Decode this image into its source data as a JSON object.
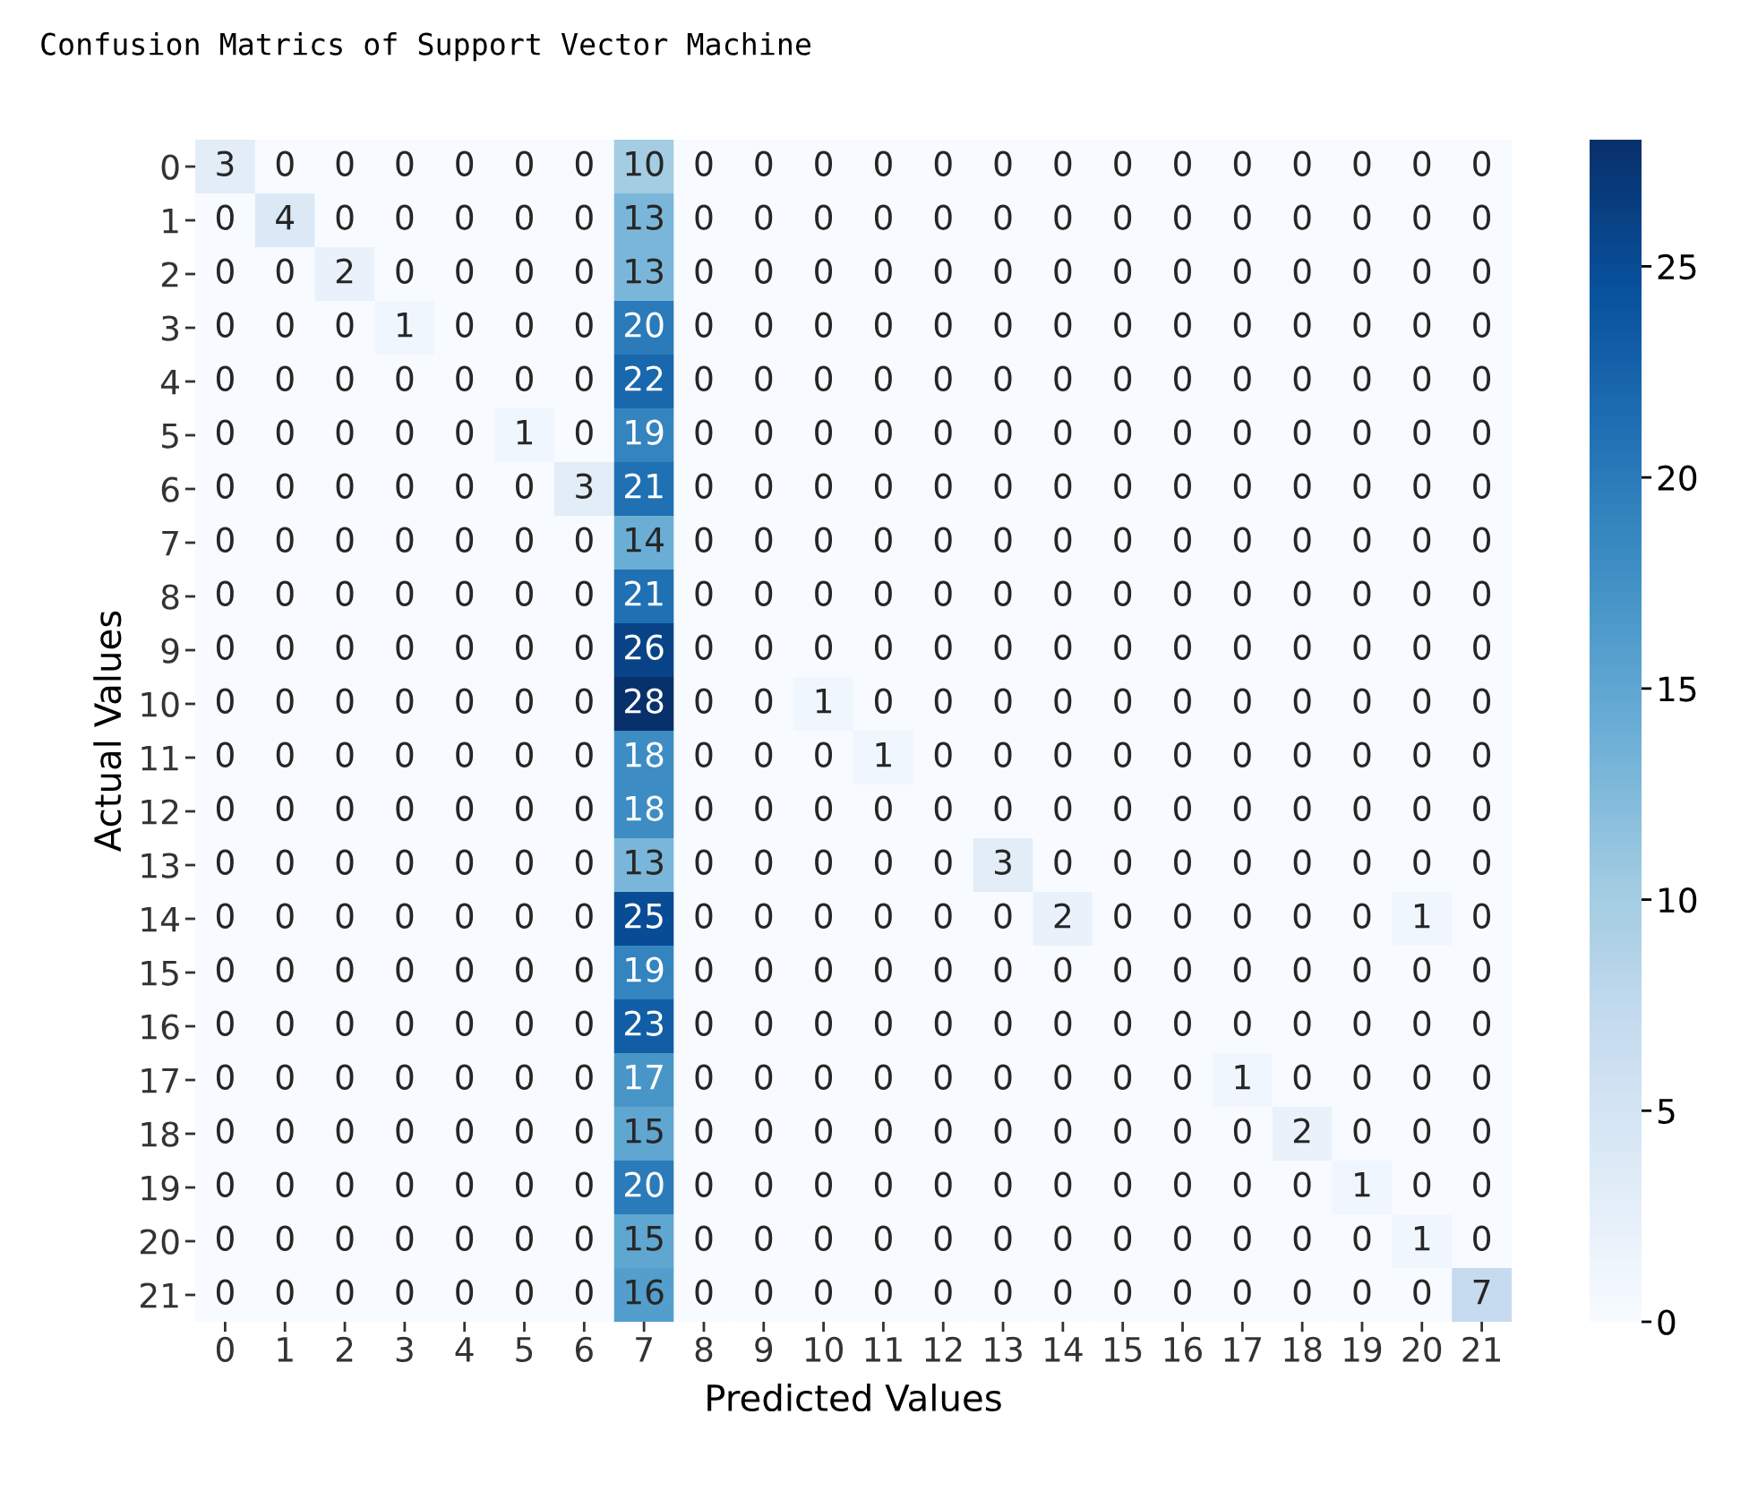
{
  "chart_data": {
    "type": "heatmap",
    "title": "Confusion Matrics of Support Vector Machine",
    "xlabel": "Predicted Values",
    "ylabel": "Actual Values",
    "categories": [
      "0",
      "1",
      "2",
      "3",
      "4",
      "5",
      "6",
      "7",
      "8",
      "9",
      "10",
      "11",
      "12",
      "13",
      "14",
      "15",
      "16",
      "17",
      "18",
      "19",
      "20",
      "21"
    ],
    "y_categories": [
      "0",
      "1",
      "2",
      "3",
      "4",
      "5",
      "6",
      "7",
      "8",
      "9",
      "10",
      "11",
      "12",
      "13",
      "14",
      "15",
      "16",
      "17",
      "18",
      "19",
      "20",
      "21"
    ],
    "cells": [
      [
        3,
        0,
        0,
        0,
        0,
        0,
        0,
        10,
        0,
        0,
        0,
        0,
        0,
        0,
        0,
        0,
        0,
        0,
        0,
        0,
        0,
        0
      ],
      [
        0,
        4,
        0,
        0,
        0,
        0,
        0,
        13,
        0,
        0,
        0,
        0,
        0,
        0,
        0,
        0,
        0,
        0,
        0,
        0,
        0,
        0
      ],
      [
        0,
        0,
        2,
        0,
        0,
        0,
        0,
        13,
        0,
        0,
        0,
        0,
        0,
        0,
        0,
        0,
        0,
        0,
        0,
        0,
        0,
        0
      ],
      [
        0,
        0,
        0,
        1,
        0,
        0,
        0,
        20,
        0,
        0,
        0,
        0,
        0,
        0,
        0,
        0,
        0,
        0,
        0,
        0,
        0,
        0
      ],
      [
        0,
        0,
        0,
        0,
        0,
        0,
        0,
        22,
        0,
        0,
        0,
        0,
        0,
        0,
        0,
        0,
        0,
        0,
        0,
        0,
        0,
        0
      ],
      [
        0,
        0,
        0,
        0,
        0,
        1,
        0,
        19,
        0,
        0,
        0,
        0,
        0,
        0,
        0,
        0,
        0,
        0,
        0,
        0,
        0,
        0
      ],
      [
        0,
        0,
        0,
        0,
        0,
        0,
        3,
        21,
        0,
        0,
        0,
        0,
        0,
        0,
        0,
        0,
        0,
        0,
        0,
        0,
        0,
        0
      ],
      [
        0,
        0,
        0,
        0,
        0,
        0,
        0,
        14,
        0,
        0,
        0,
        0,
        0,
        0,
        0,
        0,
        0,
        0,
        0,
        0,
        0,
        0
      ],
      [
        0,
        0,
        0,
        0,
        0,
        0,
        0,
        21,
        0,
        0,
        0,
        0,
        0,
        0,
        0,
        0,
        0,
        0,
        0,
        0,
        0,
        0
      ],
      [
        0,
        0,
        0,
        0,
        0,
        0,
        0,
        26,
        0,
        0,
        0,
        0,
        0,
        0,
        0,
        0,
        0,
        0,
        0,
        0,
        0,
        0
      ],
      [
        0,
        0,
        0,
        0,
        0,
        0,
        0,
        28,
        0,
        0,
        1,
        0,
        0,
        0,
        0,
        0,
        0,
        0,
        0,
        0,
        0,
        0
      ],
      [
        0,
        0,
        0,
        0,
        0,
        0,
        0,
        18,
        0,
        0,
        0,
        1,
        0,
        0,
        0,
        0,
        0,
        0,
        0,
        0,
        0,
        0
      ],
      [
        0,
        0,
        0,
        0,
        0,
        0,
        0,
        18,
        0,
        0,
        0,
        0,
        0,
        0,
        0,
        0,
        0,
        0,
        0,
        0,
        0,
        0
      ],
      [
        0,
        0,
        0,
        0,
        0,
        0,
        0,
        13,
        0,
        0,
        0,
        0,
        0,
        3,
        0,
        0,
        0,
        0,
        0,
        0,
        0,
        0
      ],
      [
        0,
        0,
        0,
        0,
        0,
        0,
        0,
        25,
        0,
        0,
        0,
        0,
        0,
        0,
        2,
        0,
        0,
        0,
        0,
        0,
        1,
        0
      ],
      [
        0,
        0,
        0,
        0,
        0,
        0,
        0,
        19,
        0,
        0,
        0,
        0,
        0,
        0,
        0,
        0,
        0,
        0,
        0,
        0,
        0,
        0
      ],
      [
        0,
        0,
        0,
        0,
        0,
        0,
        0,
        23,
        0,
        0,
        0,
        0,
        0,
        0,
        0,
        0,
        0,
        0,
        0,
        0,
        0,
        0
      ],
      [
        0,
        0,
        0,
        0,
        0,
        0,
        0,
        17,
        0,
        0,
        0,
        0,
        0,
        0,
        0,
        0,
        0,
        1,
        0,
        0,
        0,
        0
      ],
      [
        0,
        0,
        0,
        0,
        0,
        0,
        0,
        15,
        0,
        0,
        0,
        0,
        0,
        0,
        0,
        0,
        0,
        0,
        2,
        0,
        0,
        0
      ],
      [
        0,
        0,
        0,
        0,
        0,
        0,
        0,
        20,
        0,
        0,
        0,
        0,
        0,
        0,
        0,
        0,
        0,
        0,
        0,
        1,
        0,
        0
      ],
      [
        0,
        0,
        0,
        0,
        0,
        0,
        0,
        15,
        0,
        0,
        0,
        0,
        0,
        0,
        0,
        0,
        0,
        0,
        0,
        0,
        1,
        0
      ],
      [
        0,
        0,
        0,
        0,
        0,
        0,
        0,
        16,
        0,
        0,
        0,
        0,
        0,
        0,
        0,
        0,
        0,
        0,
        0,
        0,
        0,
        7
      ]
    ],
    "clim": [
      0,
      28
    ],
    "cticks": [
      0,
      5,
      10,
      15,
      20,
      25
    ],
    "data_labels": true
  }
}
